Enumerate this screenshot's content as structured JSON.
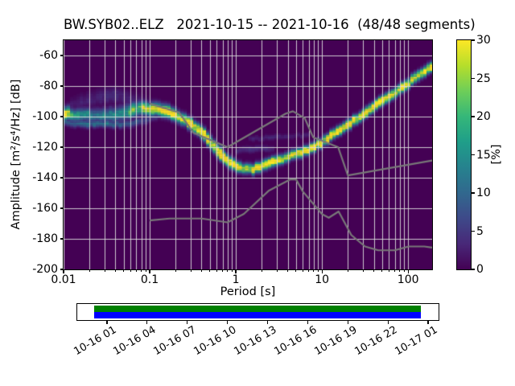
{
  "figure": {
    "title": "BW.SYB02..ELZ   2021-10-15 -- 2021-10-16  (48/48 segments)",
    "background": "#ffffff"
  },
  "main_axes": {
    "xlabel": "Period [s]",
    "ylabel": "Amplitude [m²/s⁴/Hz] [dB]",
    "x_tick_labels": [
      "0.01",
      "0.1",
      "1",
      "10",
      "100"
    ],
    "y_tick_labels": [
      "-60",
      "-80",
      "-100",
      "-120",
      "-140",
      "-160",
      "-180",
      "-200"
    ]
  },
  "colorbar": {
    "label": "[%]",
    "tick_labels": [
      "0",
      "5",
      "10",
      "15",
      "20",
      "25",
      "30"
    ],
    "vmin": 0,
    "vmax": 30,
    "colormap": "viridis"
  },
  "coverage_timeline": {
    "tick_labels": [
      "10-16 01",
      "10-16 04",
      "10-16 07",
      "10-16 10",
      "10-16 13",
      "10-16 16",
      "10-16 19",
      "10-16 22",
      "10-17 01"
    ],
    "frame_color": "#ffffff",
    "top_bar_color": "#008000",
    "bottom_bar_color": "#0000ff"
  },
  "chart_data": {
    "type": "heatmap",
    "title": "BW.SYB02..ELZ   2021-10-15 -- 2021-10-16  (48/48 segments)",
    "xlabel": "Period [s]",
    "ylabel": "Amplitude [m²/s⁴/Hz] [dB]",
    "xscale": "log",
    "xlim": [
      0.01,
      190
    ],
    "ylim": [
      -200,
      -50
    ],
    "grid": true,
    "grid_color": "rgba(221,221,221,0.9)",
    "colorbar_label": "[%]",
    "value_range_pct": [
      0,
      30
    ],
    "heatmap_background_pct": 0,
    "period_step_octaves": 0.125,
    "db_bin_width_db": 1,
    "psd_mode_curve_period_db_peakpct": [
      [
        0.01,
        -98.0,
        28
      ],
      [
        0.013,
        -98.5,
        20
      ],
      [
        0.018,
        -99.0,
        15
      ],
      [
        0.03,
        -99.5,
        13
      ],
      [
        0.045,
        -98.0,
        15
      ],
      [
        0.06,
        -96.0,
        20
      ],
      [
        0.08,
        -94.5,
        26
      ],
      [
        0.11,
        -95.0,
        26
      ],
      [
        0.15,
        -96.5,
        30
      ],
      [
        0.2,
        -99.0,
        30
      ],
      [
        0.28,
        -103.5,
        30
      ],
      [
        0.4,
        -110.0,
        30
      ],
      [
        0.55,
        -119.0,
        30
      ],
      [
        0.7,
        -126.0,
        30
      ],
      [
        0.9,
        -131.0,
        30
      ],
      [
        1.15,
        -133.8,
        30
      ],
      [
        1.5,
        -134.8,
        30
      ],
      [
        2.0,
        -132.8,
        30
      ],
      [
        2.5,
        -130.5,
        30
      ],
      [
        3.2,
        -128.0,
        30
      ],
      [
        4.0,
        -126.3,
        30
      ],
      [
        5.0,
        -124.7,
        30
      ],
      [
        6.3,
        -122.6,
        30
      ],
      [
        8.0,
        -119.8,
        30
      ],
      [
        10.0,
        -117.0,
        30
      ],
      [
        13.0,
        -112.5,
        30
      ],
      [
        18.0,
        -107.0,
        30
      ],
      [
        25.0,
        -101.5,
        30
      ],
      [
        35.0,
        -95.5,
        30
      ],
      [
        50.0,
        -89.5,
        30
      ],
      [
        70.0,
        -84.0,
        30
      ],
      [
        100.0,
        -78.0,
        30
      ],
      [
        140.0,
        -72.5,
        30
      ],
      [
        190.0,
        -67.5,
        30
      ]
    ],
    "mode_sigma_db_vs_period": [
      [
        0.01,
        2.6
      ],
      [
        0.04,
        3.0
      ],
      [
        0.1,
        2.6
      ],
      [
        0.2,
        2.2
      ],
      [
        0.6,
        2.0
      ],
      [
        2.0,
        1.9
      ],
      [
        10.0,
        1.7
      ],
      [
        190.0,
        1.8
      ]
    ],
    "secondary_bands": [
      {
        "name": "short-period-upper-haze",
        "sigma_db": 3.2,
        "points_period_db_peakpct": [
          [
            0.012,
            -93,
            2
          ],
          [
            0.02,
            -89,
            3
          ],
          [
            0.035,
            -86,
            3.5
          ],
          [
            0.055,
            -88,
            3
          ],
          [
            0.08,
            -91,
            2.5
          ],
          [
            0.12,
            -94,
            1.5
          ]
        ]
      },
      {
        "name": "short-period-lower-band",
        "sigma_db": 1.5,
        "points_period_db_peakpct": [
          [
            0.01,
            -104,
            10
          ],
          [
            0.025,
            -105,
            12
          ],
          [
            0.05,
            -105,
            10
          ],
          [
            0.08,
            -103,
            7
          ],
          [
            0.115,
            -100,
            5
          ]
        ]
      },
      {
        "name": "faint-band-near-minimum",
        "sigma_db": 1.3,
        "points_period_db_peakpct": [
          [
            1.05,
            -122.5,
            4
          ],
          [
            1.6,
            -121.0,
            4.5
          ],
          [
            2.6,
            -121.5,
            3
          ]
        ]
      },
      {
        "name": "faint-band-above-ridge",
        "sigma_db": 1.1,
        "points_period_db_peakpct": [
          [
            1.5,
            -114.5,
            3
          ],
          [
            3.0,
            -113.5,
            3
          ],
          [
            4.5,
            -113.0,
            2.5
          ],
          [
            7.0,
            -112.0,
            2
          ]
        ]
      }
    ],
    "noise_models": {
      "color": "#787878",
      "nhnm_period_db": [
        [
          0.1,
          -91.5
        ],
        [
          0.22,
          -97.4
        ],
        [
          0.32,
          -110.5
        ],
        [
          0.8,
          -120.0
        ],
        [
          3.8,
          -98.0
        ],
        [
          4.6,
          -96.5
        ],
        [
          6.3,
          -101.0
        ],
        [
          7.9,
          -113.5
        ],
        [
          15.4,
          -120.0
        ],
        [
          20.0,
          -138.5
        ],
        [
          190.0,
          -128.7
        ]
      ],
      "nlnm_period_db": [
        [
          0.1,
          -168.0
        ],
        [
          0.17,
          -166.7
        ],
        [
          0.4,
          -166.7
        ],
        [
          0.8,
          -169.2
        ],
        [
          1.24,
          -163.7
        ],
        [
          2.4,
          -148.6
        ],
        [
          4.3,
          -141.1
        ],
        [
          5.0,
          -141.1
        ],
        [
          6.0,
          -149.0
        ],
        [
          10.0,
          -163.8
        ],
        [
          12.0,
          -166.2
        ],
        [
          15.6,
          -162.1
        ],
        [
          21.9,
          -177.5
        ],
        [
          31.6,
          -185.0
        ],
        [
          45.0,
          -187.5
        ],
        [
          70.0,
          -187.5
        ],
        [
          101.0,
          -185.0
        ],
        [
          154.0,
          -185.0
        ],
        [
          190.0,
          -185.7
        ]
      ]
    }
  }
}
